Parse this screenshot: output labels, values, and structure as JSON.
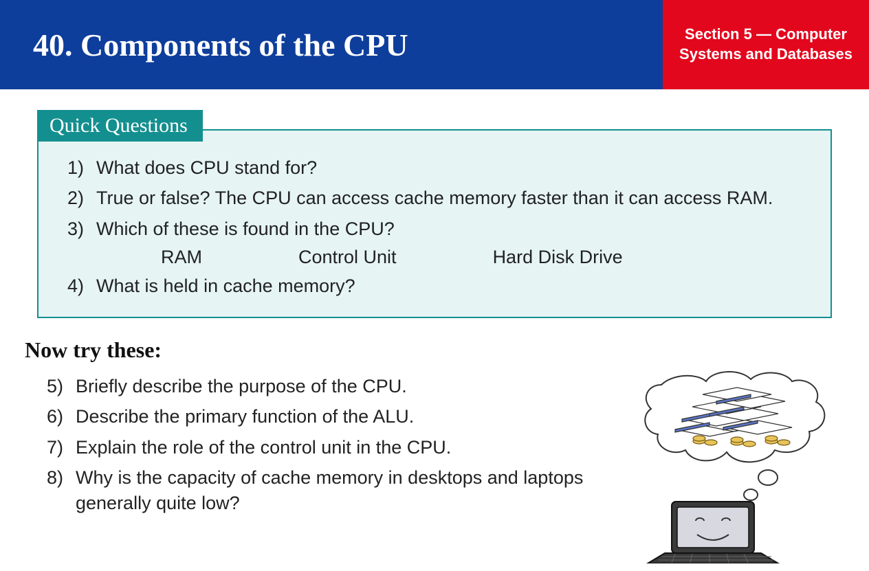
{
  "colors": {
    "header_blue": "#0e3e9c",
    "header_red": "#e3071d",
    "teal": "#148f8f",
    "box_fill": "#e6f4f4",
    "text": "#222222",
    "white": "#ffffff"
  },
  "header": {
    "title": "40. Components of the CPU",
    "section_label": "Section 5 — Computer Systems and Databases"
  },
  "quick_questions": {
    "tab_label": "Quick Questions",
    "items": [
      {
        "num": "1)",
        "text": "What does CPU stand for?"
      },
      {
        "num": "2)",
        "text": "True or false?  The CPU can access cache memory faster than it can access RAM."
      },
      {
        "num": "3)",
        "text": "Which of these is found in the CPU?",
        "options": [
          "RAM",
          "Control Unit",
          "Hard Disk Drive"
        ]
      },
      {
        "num": "4)",
        "text": "What is held in cache memory?"
      }
    ]
  },
  "now_try": {
    "title": "Now try these:",
    "items": [
      {
        "num": "5)",
        "text": "Briefly describe the purpose of the CPU."
      },
      {
        "num": "6)",
        "text": "Describe the primary function of the ALU."
      },
      {
        "num": "7)",
        "text": "Explain the role of the control unit in the CPU."
      },
      {
        "num": "8)",
        "text": "Why is the capacity of cache memory in desktops and laptops generally quite low?"
      }
    ]
  },
  "illustration": {
    "name": "laptop-dreaming-of-cash-icon",
    "laptop_body": "#3a3a3a",
    "laptop_screen": "#d8d8e0",
    "bubble_stroke": "#333333",
    "bubble_fill": "#ffffff",
    "paper_fill": "#ffffff",
    "paper_accent": "#5a74c4",
    "coin_fill": "#e6c45a",
    "coin_stroke": "#7a5a10"
  }
}
